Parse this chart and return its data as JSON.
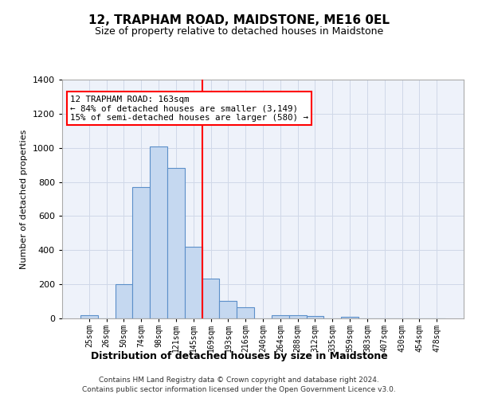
{
  "title": "12, TRAPHAM ROAD, MAIDSTONE, ME16 0EL",
  "subtitle": "Size of property relative to detached houses in Maidstone",
  "xlabel": "Distribution of detached houses by size in Maidstone",
  "ylabel": "Number of detached properties",
  "footnote1": "Contains HM Land Registry data © Crown copyright and database right 2024.",
  "footnote2": "Contains public sector information licensed under the Open Government Licence v3.0.",
  "bar_labels": [
    "25sqm",
    "26sqm",
    "50sqm",
    "74sqm",
    "98sqm",
    "121sqm",
    "145sqm",
    "169sqm",
    "193sqm",
    "216sqm",
    "240sqm",
    "264sqm",
    "288sqm",
    "312sqm",
    "335sqm",
    "359sqm",
    "383sqm",
    "407sqm",
    "430sqm",
    "454sqm",
    "478sqm"
  ],
  "bar_values": [
    20,
    0,
    200,
    770,
    1010,
    880,
    420,
    235,
    105,
    65,
    0,
    20,
    20,
    15,
    0,
    10,
    0,
    0,
    0,
    0,
    0
  ],
  "bar_color": "#c5d8f0",
  "bar_edgecolor": "#5b8fc9",
  "vline_color": "red",
  "annotation_title": "12 TRAPHAM ROAD: 163sqm",
  "annotation_line2": "← 84% of detached houses are smaller (3,149)",
  "annotation_line3": "15% of semi-detached houses are larger (580) →",
  "ylim": [
    0,
    1400
  ],
  "yticks": [
    0,
    200,
    400,
    600,
    800,
    1000,
    1200,
    1400
  ],
  "grid_color": "#d0d8e8",
  "bg_color": "#eef2fa",
  "vline_pos": 6.5
}
